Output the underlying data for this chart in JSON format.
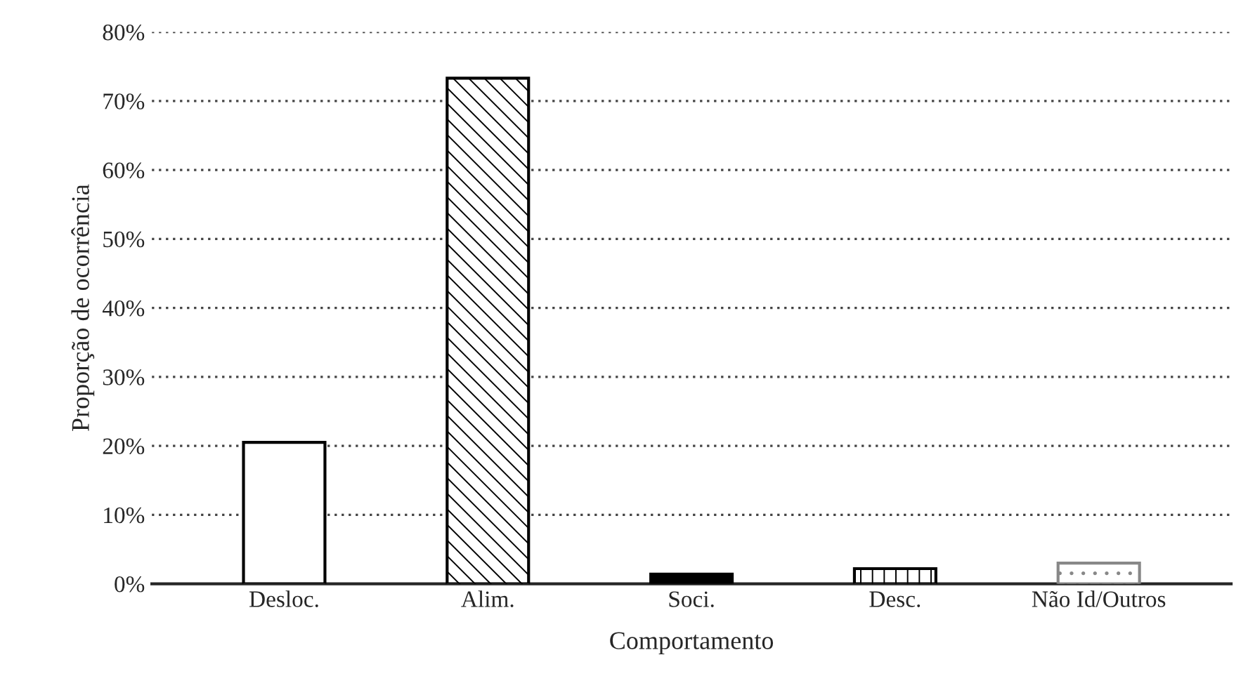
{
  "chart_data": {
    "type": "bar",
    "xlabel": "Comportamento",
    "ylabel": "Proporção de ocorrência",
    "categories": [
      "Desloc.",
      "Alim.",
      "Soci.",
      "Desc.",
      "Não Id/Outros"
    ],
    "values": [
      20.5,
      73.3,
      1.4,
      2.2,
      3.0
    ],
    "colors": [
      "#ffffff",
      "#000000",
      "#000000",
      "#000000",
      "#888888"
    ],
    "ylim": [
      0,
      80
    ],
    "yticks": [
      {
        "value": 0,
        "label": "0%"
      },
      {
        "value": 10,
        "label": "10%"
      },
      {
        "value": 20,
        "label": "20%"
      },
      {
        "value": 30,
        "label": "30%"
      },
      {
        "value": 40,
        "label": "40%"
      },
      {
        "value": 50,
        "label": "50%"
      },
      {
        "value": 60,
        "label": "60%"
      },
      {
        "value": 70,
        "label": "70%"
      },
      {
        "value": 80,
        "label": "80%"
      }
    ],
    "grid": "y"
  }
}
